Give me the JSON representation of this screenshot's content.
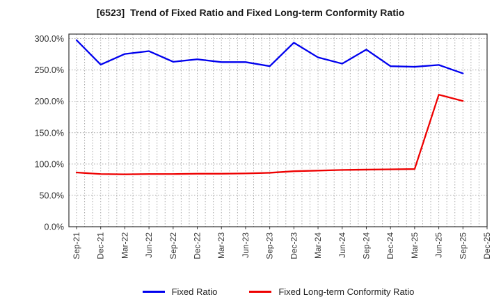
{
  "title": "[6523]  Trend of Fixed Ratio and Fixed Long-term Conformity Ratio",
  "chart_data": {
    "type": "line",
    "title": "[6523]  Trend of Fixed Ratio and Fixed Long-term Conformity Ratio",
    "categories": [
      "Sep-21",
      "Dec-21",
      "Mar-22",
      "Jun-22",
      "Sep-22",
      "Dec-22",
      "Mar-23",
      "Jun-23",
      "Sep-23",
      "Dec-23",
      "Mar-24",
      "Jun-24",
      "Sep-24",
      "Dec-24",
      "Mar-25",
      "Jun-25",
      "Sep-25",
      "Dec-25"
    ],
    "series": [
      {
        "name": "Fixed Ratio",
        "color": "#0000ee",
        "values": [
          297.5,
          258.5,
          275.5,
          280,
          263,
          267,
          262.5,
          262.5,
          256,
          293.5,
          270,
          260,
          282.5,
          256,
          255,
          258,
          244.5,
          null
        ]
      },
      {
        "name": "Fixed Long-term Conformity Ratio",
        "color": "#ee0000",
        "values": [
          86.5,
          84,
          83.5,
          84,
          84,
          84.5,
          84.5,
          85,
          86,
          88.5,
          89.5,
          90.5,
          91,
          91.5,
          92,
          210.5,
          200.5,
          null
        ]
      }
    ],
    "ylabel": "",
    "xlabel": "",
    "ylim": [
      0,
      307
    ],
    "yticks": [
      0,
      50,
      100,
      150,
      200,
      250,
      300
    ],
    "ytick_labels": [
      "0.0%",
      "50.0%",
      "100.0%",
      "150.0%",
      "200.0%",
      "250.0%",
      "300.0%"
    ],
    "unit": "percent",
    "grid": true,
    "minor_x_divisions": 3,
    "x_tick_label_rotation": 90,
    "legend_position": "bottom-center"
  },
  "legend": {
    "items": [
      {
        "label": "Fixed Ratio",
        "color": "#0000ee"
      },
      {
        "label": "Fixed Long-term Conformity Ratio",
        "color": "#ee0000"
      }
    ]
  },
  "colors": {
    "background": "#ffffff",
    "grid": "#a6a6a6",
    "frame": "#333333",
    "tick_label": "#333333",
    "title": "#1a1a1a"
  }
}
